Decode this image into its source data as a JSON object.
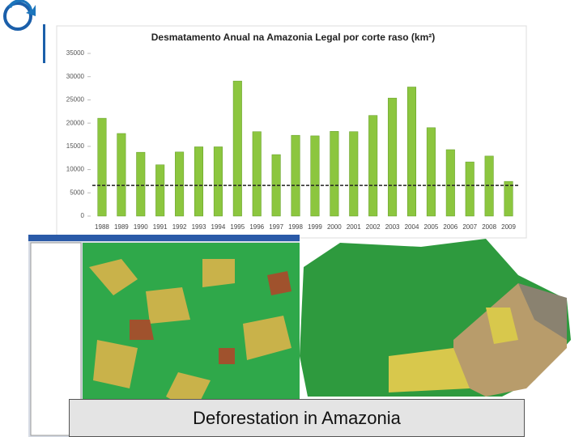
{
  "caption": "Deforestation in Amazonia",
  "chart_data": {
    "type": "bar",
    "title": "Desmatamento Anual na Amazonia Legal por corte raso (km²)",
    "categories": [
      "1988",
      "1989",
      "1990",
      "1991",
      "1992",
      "1993",
      "1994",
      "1995",
      "1996",
      "1997",
      "1998",
      "1999",
      "2000",
      "2001",
      "2002",
      "2003",
      "2004",
      "2005",
      "2006",
      "2007",
      "2008",
      "2009"
    ],
    "values": [
      21050,
      17770,
      13730,
      11030,
      13786,
      14896,
      14896,
      29059,
      18161,
      13227,
      17383,
      17259,
      18226,
      18165,
      21651,
      25396,
      27772,
      19014,
      14286,
      11651,
      12911,
      7464
    ],
    "color": "#8cc63f",
    "reference_line": 6600,
    "ylim": [
      0,
      35000
    ],
    "yticks": [
      0,
      5000,
      10000,
      15000,
      20000,
      25000,
      30000,
      35000
    ],
    "grid": false
  }
}
